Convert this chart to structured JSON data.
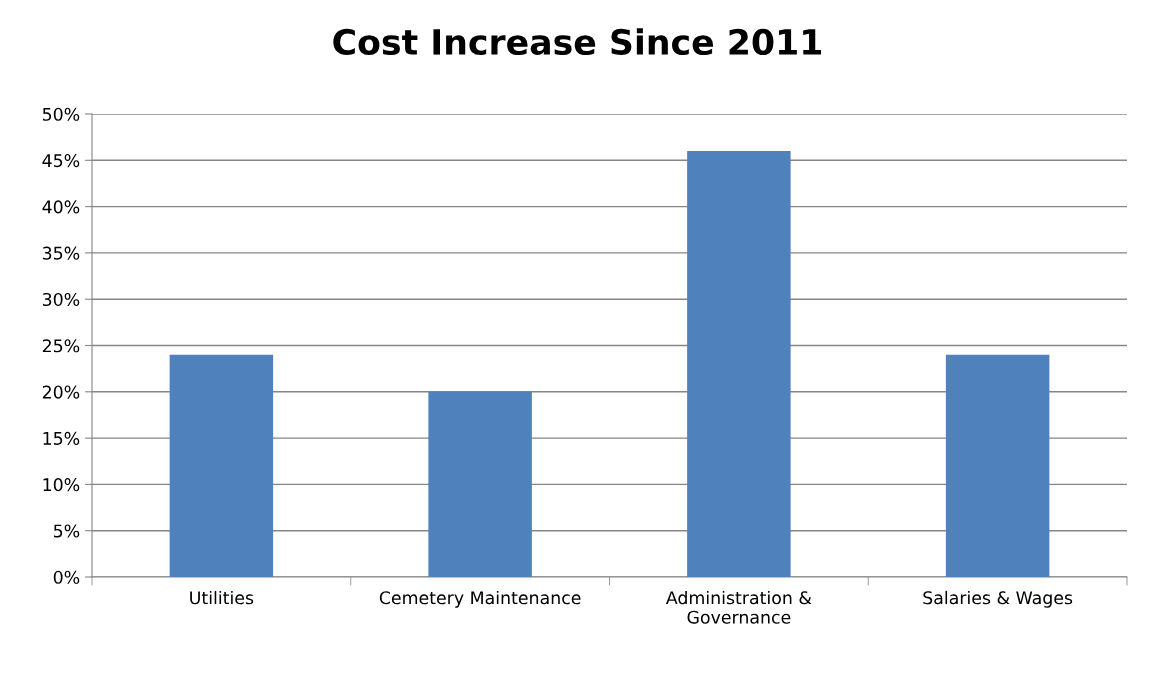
{
  "chart_data": {
    "type": "bar",
    "title": "Cost Increase Since 2011",
    "categories": [
      "Utilities",
      "Cemetery Maintenance",
      "Administration &\nGovernance",
      "Salaries & Wages"
    ],
    "values": [
      24,
      20,
      46,
      24
    ],
    "color": "#4f81bd",
    "ylim": [
      0,
      50
    ],
    "yticks": [
      {
        "value": 0,
        "label": "0%"
      },
      {
        "value": 5,
        "label": "5%"
      },
      {
        "value": 10,
        "label": "10%"
      },
      {
        "value": 15,
        "label": "15%"
      },
      {
        "value": 20,
        "label": "20%"
      },
      {
        "value": 25,
        "label": "25%"
      },
      {
        "value": 30,
        "label": "30%"
      },
      {
        "value": 35,
        "label": "35%"
      },
      {
        "value": 40,
        "label": "40%"
      },
      {
        "value": 45,
        "label": "45%"
      },
      {
        "value": 50,
        "label": "50%"
      }
    ],
    "grid": "y",
    "legend": false
  }
}
